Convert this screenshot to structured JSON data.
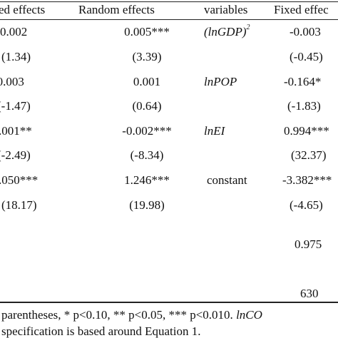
{
  "table": {
    "headers": [
      "ed effects",
      "Random effects",
      "variables",
      "Fixed effec"
    ],
    "rows": [
      {
        "c1": "0.002",
        "c2": "0.005***",
        "c3": "(lnGDP)",
        "c3_sup": "2",
        "c4": "-0.003"
      },
      {
        "c1": "(1.34)",
        "c2": "(3.39)",
        "c3": "",
        "c4": "(-0.45)"
      },
      {
        "c1": "-0.003",
        "c2": "0.001",
        "c3": "lnPOP",
        "c4": "-0.164*"
      },
      {
        "c1": "(-1.47)",
        "c2": "(0.64)",
        "c3": "",
        "c4": "(-1.83)"
      },
      {
        "c1": ".001**",
        "c2": "-0.002***",
        "c3": "lnEI",
        "c4": "0.994***"
      },
      {
        "c1": "(-2.49)",
        "c2": "(-8.34)",
        "c3": "",
        "c4": "(32.37)"
      },
      {
        "c1": ".050***",
        "c2": "1.246***",
        "c3": "constant",
        "c4": "-3.382***"
      },
      {
        "c1": "(18.17)",
        "c2": "(19.98)",
        "c3": "",
        "c4": "(-4.65)"
      },
      {
        "c1": "",
        "c2": "",
        "c3": "",
        "c4": "0.975"
      },
      {
        "c1": "",
        "c2": "",
        "c3": "",
        "c4": "630"
      }
    ]
  },
  "notes": {
    "line1_prefix": "parentheses,  *  p<0.10,  **  p<0.05,  ***  p<0.010.  ",
    "line1_italic": "lnCO",
    "line2": "specification is based around Equation 1."
  }
}
